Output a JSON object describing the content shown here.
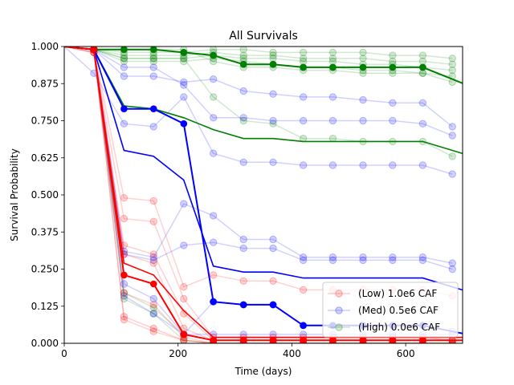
{
  "chart_data": {
    "type": "line",
    "title": "All Survivals",
    "xlabel": "Time (days)",
    "ylabel": "Survival Probability",
    "xlim": [
      0,
      700
    ],
    "ylim": [
      0,
      1
    ],
    "x_ticks": [
      "0",
      "200",
      "400",
      "600"
    ],
    "y_ticks": [
      "0.000",
      "0.125",
      "0.250",
      "0.375",
      "0.500",
      "0.625",
      "0.750",
      "0.875",
      "1.000"
    ],
    "grid": false,
    "legend_position": "lower-right",
    "legend": [
      {
        "label": "(Low) 1.0e6 CAF",
        "color": "#ff0000"
      },
      {
        "label": "(Med) 0.5e6 CAF",
        "color": "#0000ff"
      },
      {
        "label": "(High) 0.0e6 CAF",
        "color": "#008000"
      }
    ],
    "x": [
      0,
      52,
      105,
      157,
      210,
      262,
      315,
      367,
      420,
      472,
      525,
      577,
      630,
      682
    ],
    "series": [
      {
        "group": "low",
        "role": "light",
        "values": [
          1.0,
          0.99,
          0.49,
          0.48,
          0.19,
          0.23,
          0.21,
          0.21,
          0.18,
          0.18,
          0.18,
          0.18,
          0.18,
          0.16
        ]
      },
      {
        "group": "low",
        "role": "light",
        "values": [
          1.0,
          0.98,
          0.42,
          0.41,
          0.15,
          0.02,
          0.02,
          0.02,
          0.02,
          0.02,
          0.02,
          0.02,
          0.02,
          0.01
        ]
      },
      {
        "group": "low",
        "role": "light",
        "values": [
          1.0,
          0.99,
          0.33,
          0.3,
          0.1,
          0.01,
          0.01,
          0.01,
          0.01,
          0.01,
          0.01,
          0.01,
          0.01,
          0.01
        ]
      },
      {
        "group": "low",
        "role": "light",
        "values": [
          1.0,
          0.98,
          0.3,
          0.27,
          0.05,
          0.01,
          0.01,
          0.01,
          0.01,
          0.01,
          0.01,
          0.01,
          0.01,
          0.01
        ]
      },
      {
        "group": "low",
        "role": "light",
        "values": [
          1.0,
          0.98,
          0.17,
          0.13,
          0.02,
          0.0,
          0.0,
          0.0,
          0.0,
          0.0,
          0.0,
          0.0,
          0.0,
          0.0
        ]
      },
      {
        "group": "low",
        "role": "light",
        "values": [
          1.0,
          0.99,
          0.09,
          0.05,
          0.01,
          0.0,
          0.0,
          0.0,
          0.0,
          0.0,
          0.0,
          0.0,
          0.0,
          0.0
        ]
      },
      {
        "group": "low",
        "role": "light",
        "values": [
          1.0,
          0.99,
          0.08,
          0.04,
          0.01,
          0.0,
          0.0,
          0.0,
          0.0,
          0.0,
          0.0,
          0.0,
          0.0,
          0.0
        ]
      },
      {
        "group": "low",
        "role": "mean",
        "values": [
          1.0,
          0.99,
          0.27,
          0.23,
          0.11,
          0.02,
          0.02,
          0.02,
          0.02,
          0.02,
          0.02,
          0.02,
          0.02,
          0.02
        ]
      },
      {
        "group": "low",
        "role": "median",
        "values": [
          1.0,
          0.99,
          0.23,
          0.2,
          0.03,
          0.01,
          0.01,
          0.01,
          0.01,
          0.01,
          0.01,
          0.01,
          0.01,
          0.01
        ]
      },
      {
        "group": "med",
        "role": "light",
        "values": [
          1.0,
          0.91,
          0.74,
          0.73,
          0.83,
          0.64,
          0.61,
          0.61,
          0.6,
          0.6,
          0.6,
          0.6,
          0.6,
          0.57
        ]
      },
      {
        "group": "med",
        "role": "light",
        "values": [
          1.0,
          0.99,
          0.9,
          0.9,
          0.88,
          0.89,
          0.85,
          0.84,
          0.83,
          0.83,
          0.82,
          0.81,
          0.81,
          0.73
        ]
      },
      {
        "group": "med",
        "role": "light",
        "values": [
          1.0,
          0.99,
          0.93,
          0.93,
          0.87,
          0.76,
          0.76,
          0.75,
          0.75,
          0.75,
          0.75,
          0.75,
          0.74,
          0.7
        ]
      },
      {
        "group": "med",
        "role": "light",
        "values": [
          1.0,
          0.99,
          0.31,
          0.29,
          0.47,
          0.43,
          0.35,
          0.35,
          0.29,
          0.29,
          0.29,
          0.29,
          0.29,
          0.27
        ]
      },
      {
        "group": "med",
        "role": "light",
        "values": [
          1.0,
          0.99,
          0.3,
          0.28,
          0.33,
          0.34,
          0.32,
          0.32,
          0.28,
          0.28,
          0.28,
          0.28,
          0.28,
          0.25
        ]
      },
      {
        "group": "med",
        "role": "light",
        "values": [
          1.0,
          0.99,
          0.2,
          0.15,
          0.03,
          0.14,
          0.13,
          0.13,
          0.06,
          0.06,
          0.06,
          0.06,
          0.06,
          0.04
        ]
      },
      {
        "group": "med",
        "role": "light",
        "values": [
          1.0,
          0.99,
          0.16,
          0.1,
          0.03,
          0.03,
          0.03,
          0.03,
          0.03,
          0.03,
          0.03,
          0.03,
          0.03,
          0.03
        ]
      },
      {
        "group": "med",
        "role": "mean",
        "values": [
          1.0,
          0.99,
          0.65,
          0.63,
          0.55,
          0.26,
          0.24,
          0.24,
          0.22,
          0.22,
          0.22,
          0.22,
          0.22,
          0.19
        ]
      },
      {
        "group": "med",
        "role": "median",
        "values": [
          1.0,
          0.99,
          0.79,
          0.79,
          0.74,
          0.14,
          0.13,
          0.13,
          0.06,
          0.06,
          0.06,
          0.06,
          0.06,
          0.04
        ]
      },
      {
        "group": "high",
        "role": "light",
        "values": [
          1.0,
          0.99,
          0.98,
          0.98,
          0.98,
          0.99,
          0.99,
          0.98,
          0.98,
          0.98,
          0.98,
          0.97,
          0.97,
          0.96
        ]
      },
      {
        "group": "high",
        "role": "light",
        "values": [
          1.0,
          0.99,
          0.97,
          0.97,
          0.97,
          0.98,
          0.97,
          0.97,
          0.96,
          0.96,
          0.96,
          0.95,
          0.95,
          0.94
        ]
      },
      {
        "group": "high",
        "role": "light",
        "values": [
          1.0,
          0.99,
          0.96,
          0.96,
          0.96,
          0.97,
          0.96,
          0.96,
          0.95,
          0.95,
          0.94,
          0.94,
          0.93,
          0.92
        ]
      },
      {
        "group": "high",
        "role": "light",
        "values": [
          1.0,
          0.99,
          0.95,
          0.95,
          0.95,
          0.96,
          0.95,
          0.94,
          0.93,
          0.93,
          0.92,
          0.92,
          0.91,
          0.9
        ]
      },
      {
        "group": "high",
        "role": "light",
        "values": [
          1.0,
          0.99,
          0.99,
          0.99,
          0.99,
          0.95,
          0.93,
          0.93,
          0.92,
          0.92,
          0.91,
          0.91,
          0.91,
          0.88
        ]
      },
      {
        "group": "high",
        "role": "light",
        "values": [
          1.0,
          0.99,
          0.96,
          0.96,
          0.96,
          0.83,
          0.75,
          0.74,
          0.69,
          0.69,
          0.68,
          0.68,
          0.68,
          0.63
        ]
      },
      {
        "group": "high",
        "role": "light",
        "values": [
          1.0,
          0.99,
          0.17,
          0.12,
          0.03,
          0.01,
          0.01,
          0.01,
          0.01,
          0.01,
          0.01,
          0.01,
          0.01,
          0.01
        ]
      },
      {
        "group": "high",
        "role": "light",
        "values": [
          1.0,
          0.99,
          0.15,
          0.1,
          0.01,
          0.0,
          0.0,
          0.0,
          0.0,
          0.0,
          0.0,
          0.0,
          0.0,
          0.0
        ]
      },
      {
        "group": "high",
        "role": "mean",
        "values": [
          1.0,
          0.99,
          0.8,
          0.79,
          0.76,
          0.72,
          0.69,
          0.69,
          0.68,
          0.68,
          0.68,
          0.68,
          0.68,
          0.65
        ]
      },
      {
        "group": "high",
        "role": "median",
        "values": [
          1.0,
          0.99,
          0.99,
          0.99,
          0.98,
          0.97,
          0.94,
          0.94,
          0.93,
          0.93,
          0.93,
          0.93,
          0.93,
          0.89
        ]
      }
    ],
    "colors": {
      "low": "#ff0000",
      "med": "#0000ff",
      "high": "#008000"
    }
  }
}
